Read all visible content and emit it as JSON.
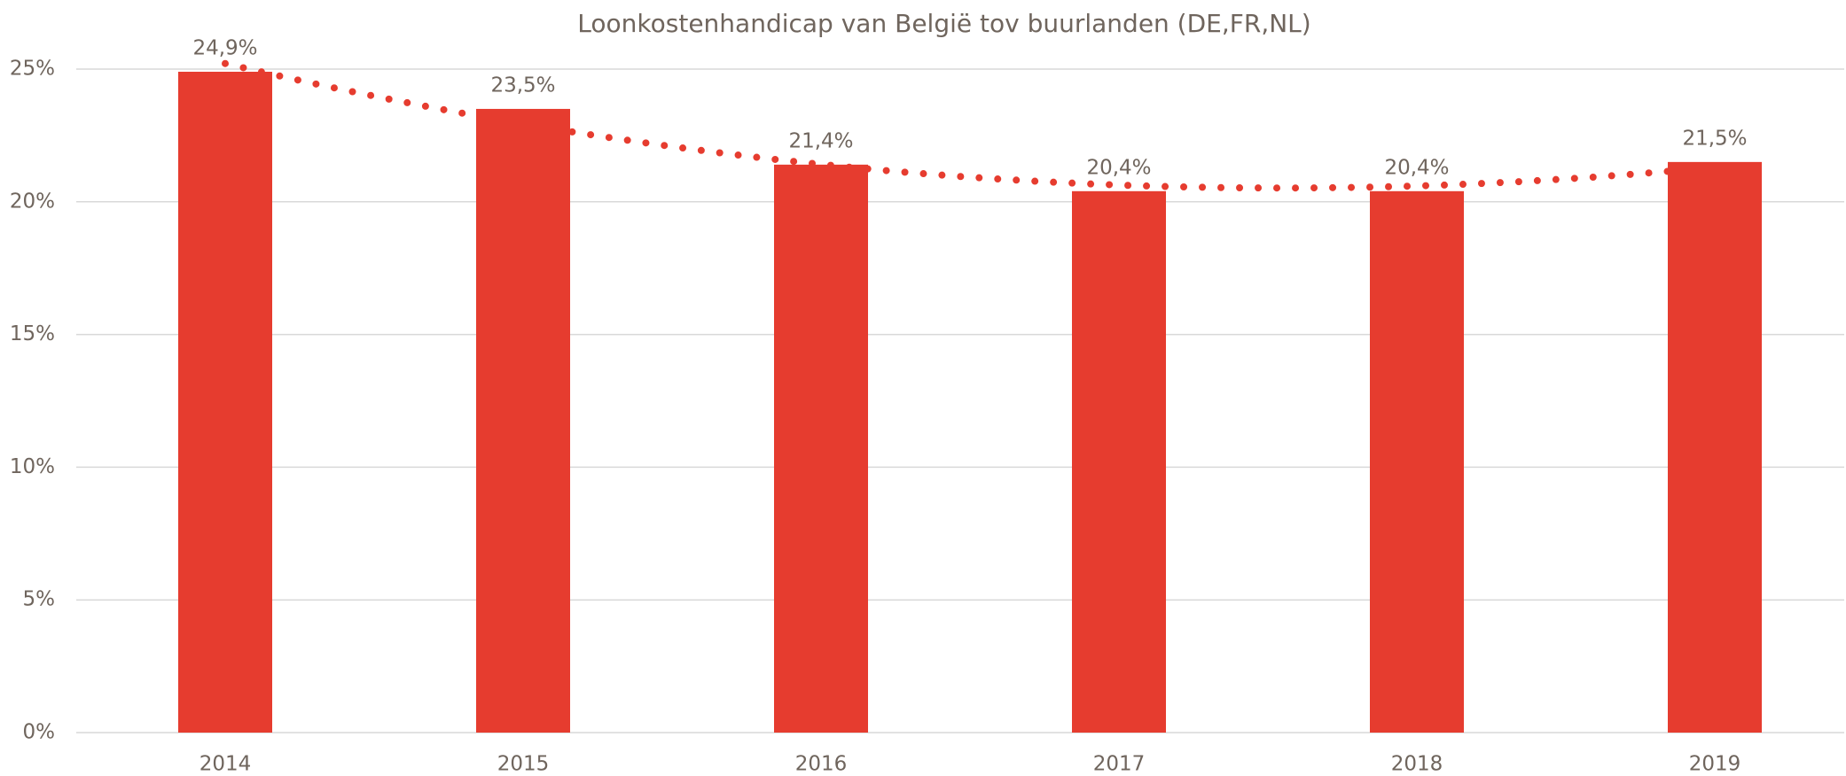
{
  "chart_data": {
    "type": "bar",
    "title": "Loonkostenhandicap van België tov buurlanden (DE,FR,NL)",
    "categories": [
      "2014",
      "2015",
      "2016",
      "2017",
      "2018",
      "2019"
    ],
    "values": [
      24.9,
      23.5,
      21.4,
      20.4,
      20.4,
      21.5
    ],
    "value_labels": [
      "24,9%",
      "23,5%",
      "21,4%",
      "20,4%",
      "20,4%",
      "21,5%"
    ],
    "color": "#e63c2f",
    "ylim": [
      0,
      25
    ],
    "yticks": [
      {
        "value": 0,
        "label": "0%"
      },
      {
        "value": 5,
        "label": "5%"
      },
      {
        "value": 10,
        "label": "10%"
      },
      {
        "value": 15,
        "label": "15%"
      },
      {
        "value": 20,
        "label": "20%"
      },
      {
        "value": 25,
        "label": "25%"
      }
    ],
    "grid": true,
    "trendline": {
      "kind": "polynomial",
      "order": 2,
      "style": "dotted",
      "color": "#e63c2f"
    }
  }
}
